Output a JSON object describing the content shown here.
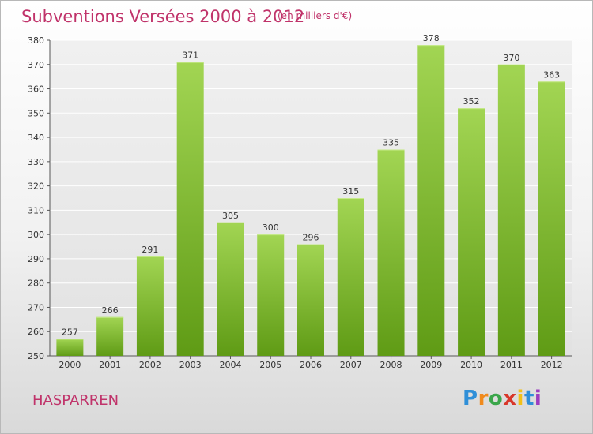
{
  "header": {
    "title": "Subventions Versées 2000 à 2012",
    "subtitle": "(en milliers d'€)"
  },
  "footer": {
    "city": "HASPARREN",
    "logo_text": "Proxiti"
  },
  "colors": {
    "accent": "#c0336a",
    "bar_top": "#9fd24e",
    "bar_bottom": "#5e9a14"
  },
  "chart_data": {
    "type": "bar",
    "title": "Subventions Versées 2000 à 2012",
    "subtitle": "(en milliers d'€)",
    "xlabel": "",
    "ylabel": "",
    "categories": [
      "2000",
      "2001",
      "2002",
      "2003",
      "2004",
      "2005",
      "2006",
      "2007",
      "2008",
      "2009",
      "2010",
      "2011",
      "2012"
    ],
    "values": [
      257,
      266,
      291,
      371,
      305,
      300,
      296,
      315,
      335,
      378,
      352,
      370,
      363
    ],
    "ylim": [
      250,
      380
    ],
    "yticks": [
      250,
      260,
      270,
      280,
      290,
      300,
      310,
      320,
      330,
      340,
      350,
      360,
      370,
      380
    ],
    "grid": true,
    "data_labels": true
  }
}
